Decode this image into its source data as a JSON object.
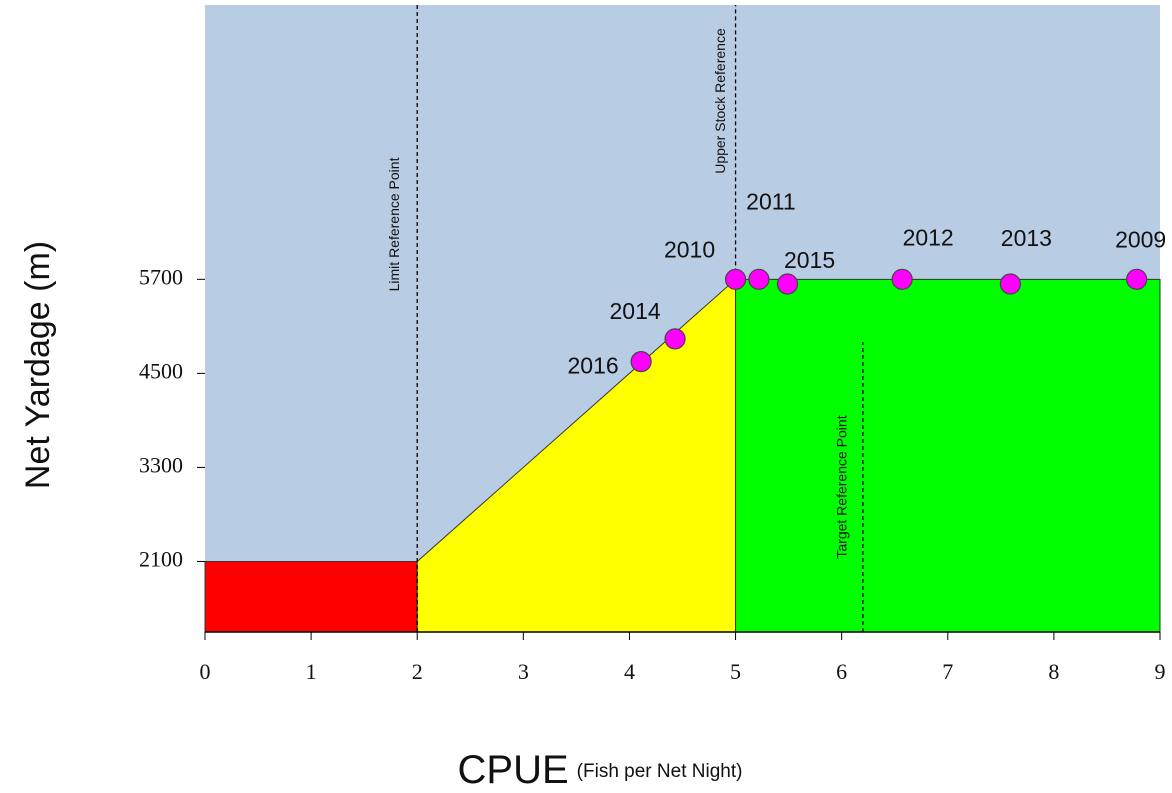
{
  "chart_data": {
    "type": "scatter",
    "y_label": "Net Yardage (m)",
    "x_label": "CPUE",
    "x_label_sub": "(Fish per Net Night)",
    "xlim": [
      0,
      9
    ],
    "xticks": [
      0,
      1,
      2,
      3,
      4,
      5,
      6,
      7,
      8,
      9
    ],
    "ylim": [
      1200,
      9200
    ],
    "yticks": [
      2100,
      3300,
      4500,
      5700
    ],
    "background": "#b8cce4",
    "zones": [
      {
        "color": "#ff0000",
        "points": [
          [
            0,
            1200
          ],
          [
            0,
            2100
          ],
          [
            2,
            2100
          ],
          [
            2,
            1200
          ]
        ]
      },
      {
        "color": "#ffff00",
        "points": [
          [
            2,
            1200
          ],
          [
            2,
            2100
          ],
          [
            5,
            5700
          ],
          [
            5,
            1200
          ]
        ]
      },
      {
        "color": "#00ff00",
        "points": [
          [
            5,
            1200
          ],
          [
            5,
            5700
          ],
          [
            9,
            5700
          ],
          [
            9,
            1200
          ]
        ]
      }
    ],
    "reference_lines": [
      {
        "label": "Limit Reference Point",
        "x": 2,
        "y_range": [
          1200,
          9200
        ]
      },
      {
        "label": "Upper Stock Reference",
        "x": 5,
        "y_range": [
          5700,
          9200
        ]
      },
      {
        "label": "Target Reference Point",
        "x": 6.2,
        "y_range": [
          1200,
          4900
        ]
      }
    ],
    "point_color": "#ff00ff",
    "labels": [
      "2016",
      "2014",
      "2010",
      "2011",
      "2015",
      "2012",
      "2013",
      "2009"
    ],
    "x": [
      4.11,
      4.43,
      5.0,
      5.22,
      5.49,
      6.57,
      7.59,
      8.78
    ],
    "values": [
      4650,
      4940,
      5700,
      5700,
      5640,
      5700,
      5640,
      5700
    ]
  }
}
